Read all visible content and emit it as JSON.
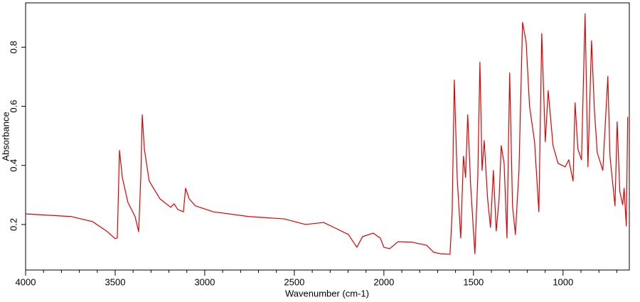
{
  "chart_data": {
    "type": "line",
    "xlabel": "Wavenumber (cm-1)",
    "ylabel": "Absorbance",
    "color": "#e00000",
    "xlim": [
      4000,
      630
    ],
    "ylim": [
      0.046,
      0.95
    ],
    "xticks": [
      4000,
      3500,
      3000,
      2500,
      2000,
      1500,
      1000
    ],
    "xminorticks": [
      3900,
      3800,
      3700,
      3600,
      3400,
      3300,
      3200,
      3100,
      2900,
      2800,
      2700,
      2600,
      2400,
      2300,
      2200,
      2100,
      1900,
      1800,
      1700,
      1600,
      1400,
      1300,
      1200,
      1100,
      900,
      800,
      700
    ],
    "yticks": [
      0.2,
      0.4,
      0.6,
      0.8
    ],
    "x": [
      4000,
      3746,
      3627,
      3548,
      3500,
      3488,
      3476,
      3460,
      3429,
      3389,
      3369,
      3357,
      3349,
      3337,
      3310,
      3250,
      3190,
      3171,
      3151,
      3119,
      3107,
      3087,
      3052,
      2952,
      2754,
      2556,
      2437,
      2337,
      2278,
      2198,
      2151,
      2119,
      2060,
      2020,
      2000,
      1968,
      1921,
      1841,
      1762,
      1722,
      1683,
      1631,
      1619,
      1607,
      1591,
      1571,
      1556,
      1544,
      1532,
      1516,
      1492,
      1476,
      1464,
      1452,
      1440,
      1421,
      1405,
      1389,
      1373,
      1357,
      1345,
      1329,
      1313,
      1298,
      1282,
      1266,
      1246,
      1226,
      1206,
      1187,
      1159,
      1135,
      1119,
      1099,
      1083,
      1056,
      1028,
      988,
      968,
      944,
      933,
      917,
      897,
      877,
      861,
      841,
      825,
      809,
      778,
      750,
      738,
      710,
      698,
      683,
      667,
      659,
      647,
      639
    ],
    "values": [
      0.236,
      0.227,
      0.21,
      0.178,
      0.152,
      0.155,
      0.451,
      0.359,
      0.275,
      0.227,
      0.176,
      0.359,
      0.571,
      0.455,
      0.347,
      0.287,
      0.258,
      0.27,
      0.251,
      0.243,
      0.323,
      0.287,
      0.263,
      0.243,
      0.227,
      0.219,
      0.2,
      0.207,
      0.19,
      0.166,
      0.123,
      0.159,
      0.171,
      0.154,
      0.123,
      0.118,
      0.142,
      0.14,
      0.13,
      0.106,
      0.101,
      0.099,
      0.239,
      0.689,
      0.359,
      0.154,
      0.431,
      0.359,
      0.571,
      0.335,
      0.101,
      0.359,
      0.749,
      0.383,
      0.484,
      0.287,
      0.19,
      0.383,
      0.178,
      0.287,
      0.467,
      0.407,
      0.154,
      0.713,
      0.263,
      0.166,
      0.383,
      0.884,
      0.817,
      0.6,
      0.48,
      0.243,
      0.846,
      0.48,
      0.653,
      0.467,
      0.407,
      0.395,
      0.419,
      0.347,
      0.612,
      0.455,
      0.419,
      0.913,
      0.395,
      0.822,
      0.588,
      0.443,
      0.383,
      0.701,
      0.431,
      0.263,
      0.547,
      0.311,
      0.267,
      0.323,
      0.195,
      0.564
    ]
  }
}
